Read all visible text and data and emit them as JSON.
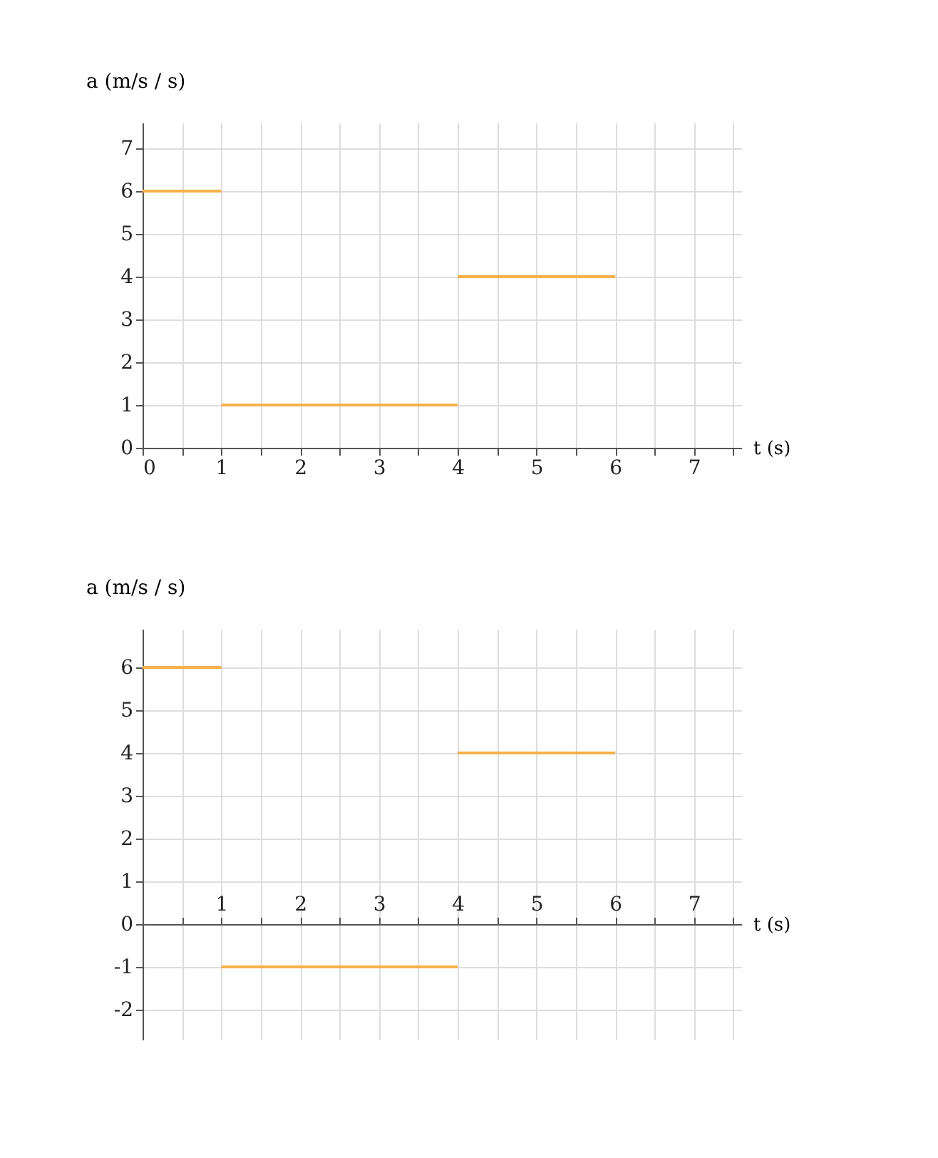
{
  "chart_data": [
    {
      "type": "line",
      "xlabel": "t (s)",
      "ylabel": "a (m/s / s)",
      "grid": true,
      "legend": false,
      "marker": "none",
      "line_style": "solid",
      "xlim": [
        0,
        7.6
      ],
      "ylim": [
        0,
        7.6
      ],
      "xticks": [
        0,
        {
          "value": 0.5,
          "label": null
        },
        1,
        {
          "value": 1.5,
          "label": null
        },
        2,
        {
          "value": 2.5,
          "label": null
        },
        3,
        {
          "value": 3.5,
          "label": null
        },
        4,
        {
          "value": 4.5,
          "label": null
        },
        5,
        {
          "value": 5.5,
          "label": null
        },
        6,
        {
          "value": 6.5,
          "label": null
        },
        7,
        {
          "value": 7.5,
          "label": null
        }
      ],
      "yticks": [
        0,
        1,
        2,
        3,
        4,
        5,
        6,
        7
      ],
      "series": [
        {
          "color": "#f8b04a",
          "x": [
            0,
            1
          ],
          "values": [
            6,
            6
          ]
        },
        {
          "color": "#f8b04a",
          "x": [
            1,
            4
          ],
          "values": [
            1,
            1
          ]
        },
        {
          "color": "#f8b04a",
          "x": [
            4,
            6
          ],
          "values": [
            4,
            4
          ]
        }
      ]
    },
    {
      "type": "line",
      "xlabel": "t (s)",
      "ylabel": "a (m/s / s)",
      "grid": true,
      "legend": false,
      "marker": "none",
      "line_style": "solid",
      "xlim": [
        0,
        7.6
      ],
      "ylim": [
        -2.7,
        6.9
      ],
      "xticks": [
        {
          "value": 0,
          "label": null
        },
        {
          "value": 0.5,
          "label": null
        },
        1,
        {
          "value": 1.5,
          "label": null
        },
        2,
        {
          "value": 2.5,
          "label": null
        },
        3,
        {
          "value": 3.5,
          "label": null
        },
        4,
        {
          "value": 4.5,
          "label": null
        },
        5,
        {
          "value": 5.5,
          "label": null
        },
        6,
        {
          "value": 6.5,
          "label": null
        },
        7,
        {
          "value": 7.5,
          "label": null
        }
      ],
      "yticks": [
        -2,
        -1,
        0,
        1,
        2,
        3,
        4,
        5,
        6
      ],
      "series": [
        {
          "color": "#f8b04a",
          "x": [
            0,
            1
          ],
          "values": [
            6,
            6
          ]
        },
        {
          "color": "#f8b04a",
          "x": [
            1,
            4
          ],
          "values": [
            -1,
            -1
          ]
        },
        {
          "color": "#f8b04a",
          "x": [
            4,
            6
          ],
          "values": [
            4,
            4
          ]
        }
      ]
    }
  ]
}
